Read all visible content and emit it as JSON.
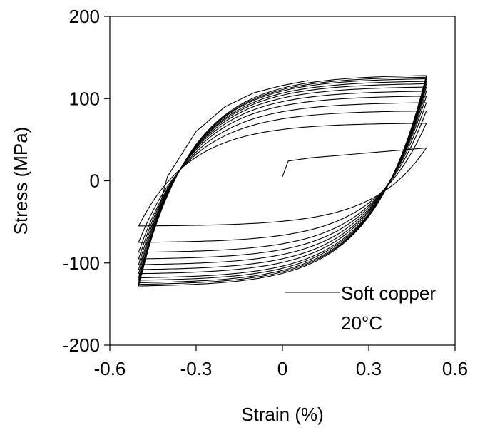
{
  "chart_data": {
    "type": "line",
    "title": "",
    "xlabel": "Strain (%)",
    "ylabel": "Stress (MPa)",
    "xlim": [
      -0.6,
      0.6
    ],
    "ylim": [
      -200,
      200
    ],
    "xticks": [
      -0.6,
      -0.3,
      0,
      0.3,
      0.6
    ],
    "yticks": [
      -200,
      -100,
      0,
      100,
      200
    ],
    "xtick_labels": [
      "-0.6",
      "-0.3",
      "0",
      "0.3",
      "0.6"
    ],
    "ytick_labels": [
      "-200",
      "-100",
      "0",
      "100",
      "200"
    ],
    "grid": false,
    "legend": {
      "position": "bottom-right",
      "lines": [
        "Soft copper",
        "20°C"
      ]
    },
    "strain_amplitude": 0.5,
    "series": [
      {
        "initial_loading": {
          "x": [
            0.0,
            0.02,
            0.1,
            0.2,
            0.3,
            0.4,
            0.5
          ],
          "y": [
            5,
            24,
            28,
            31,
            34,
            37,
            40
          ]
        },
        "cycles": [
          {
            "peak_stress": 40,
            "trough_stress": -55
          },
          {
            "peak_stress": 70,
            "trough_stress": -75
          },
          {
            "peak_stress": 85,
            "trough_stress": -87
          },
          {
            "peak_stress": 95,
            "trough_stress": -95
          },
          {
            "peak_stress": 103,
            "trough_stress": -102
          },
          {
            "peak_stress": 109,
            "trough_stress": -108
          },
          {
            "peak_stress": 114,
            "trough_stress": -113
          },
          {
            "peak_stress": 118,
            "trough_stress": -118
          },
          {
            "peak_stress": 121,
            "trough_stress": -121
          },
          {
            "peak_stress": 124,
            "trough_stress": -124
          },
          {
            "peak_stress": 126,
            "trough_stress": -126
          },
          {
            "peak_stress": 128,
            "trough_stress": -128
          }
        ],
        "final_loading": {
          "x": [
            -0.5,
            -0.4,
            -0.3,
            -0.2,
            -0.1,
            0.0,
            0.09
          ],
          "y": [
            -128,
            5,
            60,
            90,
            107,
            116,
            122
          ]
        }
      }
    ]
  }
}
